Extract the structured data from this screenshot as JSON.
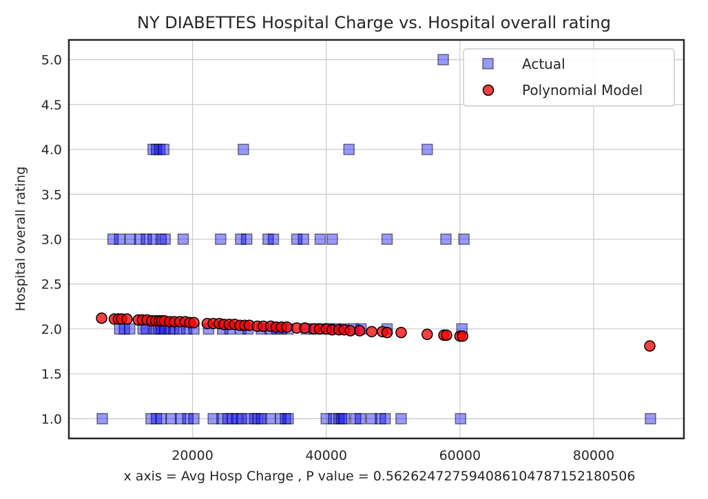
{
  "chart_data": {
    "type": "scatter",
    "title": "NY DIABETTES Hospital Charge vs. Hospital overall rating",
    "xlabel": "x axis = Avg Hosp Charge , P value = 0.56262472759408610478715218050​6",
    "ylabel": "Hospital overall rating",
    "xlim": [
      1500,
      93500
    ],
    "ylim": [
      0.78,
      5.22
    ],
    "xticks": [
      20000,
      40000,
      60000,
      80000
    ],
    "xtick_labels": [
      "20000",
      "40000",
      "60000",
      "80000"
    ],
    "yticks": [
      1.0,
      1.5,
      2.0,
      2.5,
      3.0,
      3.5,
      4.0,
      4.5,
      5.0
    ],
    "ytick_labels": [
      "1.0",
      "1.5",
      "2.0",
      "2.5",
      "3.0",
      "3.5",
      "4.0",
      "4.5",
      "5.0"
    ],
    "grid": true,
    "legend_position": "top-right",
    "series": [
      {
        "name": "Actual",
        "marker": "square",
        "color": "#0000ff",
        "x": [
          6500,
          13800,
          14600,
          15300,
          16800,
          18200,
          19300,
          20200,
          23100,
          24400,
          25300,
          26000,
          26600,
          27300,
          28300,
          29300,
          29800,
          30300,
          31600,
          33200,
          33900,
          34300,
          40000,
          41100,
          41900,
          42300,
          42700,
          44400,
          45100,
          46800,
          48100,
          48800,
          51200,
          60100,
          88500,
          9100,
          9800,
          10600,
          12600,
          13100,
          14300,
          14900,
          15300,
          15900,
          16600,
          17200,
          18100,
          19100,
          20200,
          22400,
          24500,
          25600,
          27200,
          28300,
          30300,
          31600,
          32600,
          33300,
          34300,
          37000,
          38200,
          39600,
          40500,
          41400,
          42600,
          44100,
          45200,
          49100,
          60300,
          8100,
          9100,
          10700,
          12100,
          13100,
          14100,
          15300,
          15900,
          18600,
          24200,
          27200,
          28100,
          31300,
          32100,
          35600,
          36600,
          39100,
          40900,
          49100,
          57900,
          60600,
          14100,
          14600,
          15100,
          15700,
          27600,
          43400,
          55100,
          57500
        ],
        "y": [
          1,
          1,
          1,
          1,
          1,
          1,
          1,
          1,
          1,
          1,
          1,
          1,
          1,
          1,
          1,
          1,
          1,
          1,
          1,
          1,
          1,
          1,
          1,
          1,
          1,
          1,
          1,
          1,
          1,
          1,
          1,
          1,
          1,
          1,
          1,
          2,
          2,
          2,
          2,
          2,
          2,
          2,
          2,
          2,
          2,
          2,
          2,
          2,
          2,
          2,
          2,
          2,
          2,
          2,
          2,
          2,
          2,
          2,
          2,
          2,
          2,
          2,
          2,
          2,
          2,
          2,
          2,
          2,
          2,
          3,
          3,
          3,
          3,
          3,
          3,
          3,
          3,
          3,
          3,
          3,
          3,
          3,
          3,
          3,
          3,
          3,
          3,
          3,
          3,
          3,
          4,
          4,
          4,
          4,
          4,
          4,
          4,
          5
        ]
      },
      {
        "name": "Polynomial Model",
        "marker": "circle",
        "color": "#ff0000",
        "x": [
          6400,
          8300,
          8900,
          9400,
          10200,
          11900,
          12500,
          13200,
          13900,
          14500,
          15000,
          15400,
          15800,
          16600,
          17300,
          18100,
          18900,
          19600,
          20200,
          22200,
          23100,
          24000,
          24700,
          25500,
          26300,
          27100,
          27800,
          28500,
          29700,
          30600,
          31700,
          32500,
          33300,
          34100,
          35600,
          36800,
          38200,
          39000,
          40000,
          40900,
          41900,
          42700,
          43600,
          45000,
          46800,
          48400,
          49100,
          51200,
          55100,
          57600,
          58000,
          60000,
          60400,
          88400
        ],
        "y": [
          2.12,
          2.11,
          2.11,
          2.11,
          2.11,
          2.1,
          2.1,
          2.1,
          2.09,
          2.09,
          2.09,
          2.09,
          2.09,
          2.08,
          2.08,
          2.08,
          2.08,
          2.07,
          2.07,
          2.06,
          2.06,
          2.06,
          2.05,
          2.05,
          2.05,
          2.04,
          2.04,
          2.04,
          2.03,
          2.03,
          2.03,
          2.02,
          2.02,
          2.02,
          2.01,
          2.01,
          2.0,
          2.0,
          2.0,
          1.99,
          1.99,
          1.99,
          1.98,
          1.98,
          1.97,
          1.97,
          1.96,
          1.96,
          1.94,
          1.93,
          1.93,
          1.92,
          1.92,
          1.81
        ]
      }
    ]
  }
}
